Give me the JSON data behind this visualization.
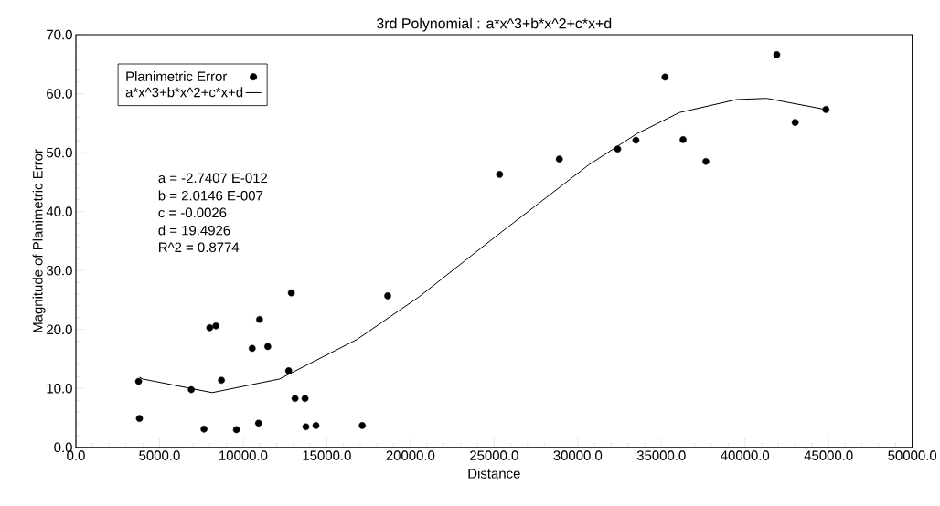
{
  "chart_data": {
    "type": "scatter",
    "title": "3rd Polynomial : a*x^3+b*x^2+c*x+d",
    "xlabel": "Distance",
    "ylabel": "Magnitude of Planimetric Error",
    "xlim": [
      0,
      50000
    ],
    "ylim": [
      0,
      70
    ],
    "xticks": [
      {
        "value": 0,
        "label": "0.0"
      },
      {
        "value": 5000,
        "label": "5000.0"
      },
      {
        "value": 10000,
        "label": "10000.0"
      },
      {
        "value": 15000,
        "label": "15000.0"
      },
      {
        "value": 20000,
        "label": "20000.0"
      },
      {
        "value": 25000,
        "label": "25000.0"
      },
      {
        "value": 30000,
        "label": "30000.0"
      },
      {
        "value": 35000,
        "label": "35000.0"
      },
      {
        "value": 40000,
        "label": "40000.0"
      },
      {
        "value": 45000,
        "label": "45000.0"
      },
      {
        "value": 50000,
        "label": "50000.0"
      }
    ],
    "yticks": [
      {
        "value": 0,
        "label": "0.0"
      },
      {
        "value": 10,
        "label": "10.0"
      },
      {
        "value": 20,
        "label": "20.0"
      },
      {
        "value": 30,
        "label": "30.0"
      },
      {
        "value": 40,
        "label": "40.0"
      },
      {
        "value": 50,
        "label": "50.0"
      },
      {
        "value": 60,
        "label": "60.0"
      },
      {
        "value": 70,
        "label": "70.0"
      }
    ],
    "grid": false,
    "legend": "top left",
    "annotations": [
      "a = -2.7407 E-012",
      "b = 2.0146 E-007",
      "c = -0.0026",
      "d = 19.4926",
      "R^2 = 0.8774"
    ],
    "series": [
      {
        "name": "Planimetric Error",
        "type": "scatter",
        "marker": "circle",
        "color": "#000000",
        "x": [
          3750,
          3800,
          6900,
          7660,
          8000,
          8370,
          8700,
          9600,
          10540,
          10980,
          10920,
          11470,
          12880,
          12720,
          13100,
          13700,
          13750,
          14350,
          17120,
          18640,
          25330,
          28900,
          32390,
          33480,
          35220,
          36300,
          37660,
          41900,
          43000,
          44840
        ],
        "values": [
          11.2,
          4.9,
          9.8,
          3.1,
          20.3,
          20.6,
          11.4,
          3.0,
          16.8,
          21.7,
          4.1,
          17.1,
          26.2,
          13.0,
          8.3,
          8.3,
          3.5,
          3.7,
          3.7,
          25.7,
          46.3,
          48.9,
          50.6,
          52.1,
          62.8,
          52.2,
          48.5,
          66.6,
          55.1,
          57.3
        ]
      },
      {
        "name": "a*x^3+b*x^2+c*x+d",
        "type": "line",
        "marker": "none",
        "line_style": "solid",
        "color": "#000000",
        "x": [
          3800,
          4000,
          8150,
          12170,
          16800,
          20500,
          25200,
          30650,
          33530,
          36090,
          39500,
          41300,
          44840
        ],
        "values": [
          11.9,
          11.6,
          9.3,
          11.6,
          18.3,
          25.5,
          36.0,
          47.9,
          53.2,
          56.8,
          59.0,
          59.2,
          57.3
        ]
      }
    ]
  }
}
